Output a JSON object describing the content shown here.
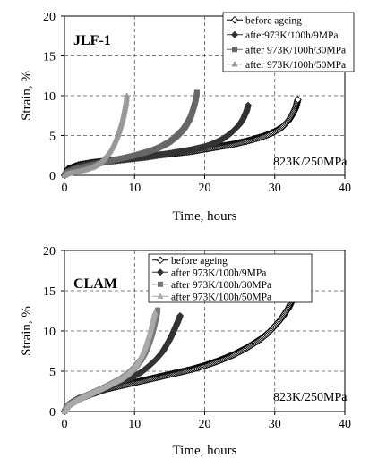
{
  "chart_data": [
    {
      "type": "scatter",
      "panel_label": "JLF-1",
      "annotation": "823K/250MPa",
      "xlabel": "Time, hours",
      "ylabel": "Strain, %",
      "xlim": [
        0,
        40
      ],
      "ylim": [
        0,
        20
      ],
      "xticks": [
        "0",
        "10",
        "20",
        "30",
        "40"
      ],
      "yticks": [
        "0",
        "5",
        "10",
        "15",
        "20"
      ],
      "grid": true,
      "legend_position": "top-right",
      "series": [
        {
          "name": "before ageing",
          "marker": "open-diamond",
          "color": "#000000",
          "x": [
            0,
            0.5,
            2,
            4,
            6,
            8,
            10,
            12,
            14,
            16,
            18,
            20,
            22,
            24,
            26,
            28,
            29,
            30,
            31,
            32,
            32.5,
            33,
            33.3
          ],
          "y": [
            0,
            0.8,
            1.3,
            1.6,
            1.8,
            2.0,
            2.2,
            2.4,
            2.6,
            2.8,
            3.0,
            3.3,
            3.6,
            3.9,
            4.3,
            4.8,
            5.1,
            5.5,
            6.0,
            6.9,
            7.6,
            8.5,
            9.5
          ]
        },
        {
          "name": "after973K/100h/9MPa",
          "marker": "filled-diamond",
          "color": "#333333",
          "x": [
            0,
            0.5,
            2,
            4,
            6,
            8,
            10,
            12,
            14,
            16,
            18,
            20,
            21,
            22,
            23,
            24,
            25,
            25.5,
            26,
            26.2
          ],
          "y": [
            0,
            0.6,
            1.1,
            1.5,
            1.7,
            1.9,
            2.1,
            2.3,
            2.6,
            2.9,
            3.2,
            3.6,
            3.9,
            4.3,
            4.8,
            5.5,
            6.4,
            7.1,
            8.1,
            8.8
          ]
        },
        {
          "name": "after 973K/100h/30MPa",
          "marker": "filled-square",
          "color": "#666666",
          "x": [
            0,
            0.5,
            2,
            4,
            6,
            8,
            10,
            12,
            13,
            14,
            15,
            16,
            17,
            17.5,
            18,
            18.3,
            18.6,
            18.8,
            18.9
          ],
          "y": [
            0,
            0.4,
            0.9,
            1.3,
            1.7,
            2.1,
            2.5,
            3.0,
            3.3,
            3.7,
            4.2,
            4.9,
            5.8,
            6.5,
            7.3,
            8.1,
            9.0,
            9.8,
            10.4
          ]
        },
        {
          "name": "after 973K/100h/50MPa",
          "marker": "filled-triangle",
          "color": "#999999",
          "x": [
            0,
            0.5,
            1,
            2,
            3,
            4,
            5,
            5.5,
            6,
            6.5,
            7,
            7.5,
            8,
            8.3,
            8.6,
            8.8,
            8.9
          ],
          "y": [
            0,
            0.2,
            0.3,
            0.5,
            0.7,
            1.0,
            1.5,
            1.9,
            2.4,
            3.0,
            3.8,
            4.8,
            6.1,
            7.0,
            8.2,
            9.2,
            10.0
          ]
        }
      ]
    },
    {
      "type": "scatter",
      "panel_label": "CLAM",
      "annotation": "823K/250MPa",
      "xlabel": "Time, hours",
      "ylabel": "Strain, %",
      "xlim": [
        0,
        40
      ],
      "ylim": [
        0,
        20
      ],
      "xticks": [
        "0",
        "10",
        "20",
        "30",
        "40"
      ],
      "yticks": [
        "0",
        "5",
        "10",
        "15",
        "20"
      ],
      "grid": true,
      "legend_position": "top-left",
      "series": [
        {
          "name": "before ageing",
          "marker": "open-diamond",
          "color": "#000000",
          "x": [
            0,
            0.5,
            1,
            2,
            4,
            6,
            8,
            10,
            12,
            14,
            16,
            18,
            20,
            22,
            24,
            26,
            28,
            29,
            30,
            31,
            32,
            32.5,
            33,
            33.5,
            34,
            34.2
          ],
          "y": [
            0,
            0.8,
            1.1,
            1.6,
            2.2,
            2.8,
            3.2,
            3.6,
            4.0,
            4.4,
            4.8,
            5.2,
            5.7,
            6.3,
            7.0,
            7.9,
            9.0,
            9.7,
            10.6,
            11.6,
            12.9,
            13.8,
            14.8,
            15.7,
            16.7,
            17.3
          ]
        },
        {
          "name": "after 973K/100h/9MPa",
          "marker": "filled-diamond",
          "color": "#333333",
          "x": [
            0,
            0.5,
            1,
            2,
            4,
            6,
            8,
            10,
            11,
            12,
            13,
            14,
            15,
            15.5,
            16,
            16.3,
            16.5
          ],
          "y": [
            0,
            0.7,
            1.0,
            1.5,
            2.2,
            2.9,
            3.6,
            4.4,
            4.9,
            5.6,
            6.4,
            7.4,
            8.9,
            9.8,
            10.8,
            11.4,
            11.9
          ]
        },
        {
          "name": "after 973K/100h/30MPa",
          "marker": "filled-square",
          "color": "#777777",
          "x": [
            0,
            0.5,
            1,
            2,
            4,
            6,
            8,
            9,
            10,
            11,
            11.5,
            12,
            12.5,
            12.8,
            13.1,
            13.3
          ],
          "y": [
            0,
            0.7,
            1.0,
            1.5,
            2.3,
            3.1,
            4.0,
            4.6,
            5.4,
            6.5,
            7.3,
            8.3,
            9.6,
            10.6,
            11.7,
            12.6
          ]
        },
        {
          "name": "after 973K/100h/50MPa",
          "marker": "filled-triangle",
          "color": "#aaaaaa",
          "x": [
            0,
            0.5,
            1,
            2,
            4,
            6,
            8,
            9,
            10,
            10.5,
            11,
            11.5,
            12,
            12.3,
            12.6,
            12.9
          ],
          "y": [
            0,
            0.7,
            1.0,
            1.5,
            2.3,
            3.1,
            4.0,
            4.6,
            5.5,
            6.1,
            6.9,
            7.9,
            9.2,
            10.1,
            11.2,
            12.3
          ]
        }
      ]
    }
  ]
}
